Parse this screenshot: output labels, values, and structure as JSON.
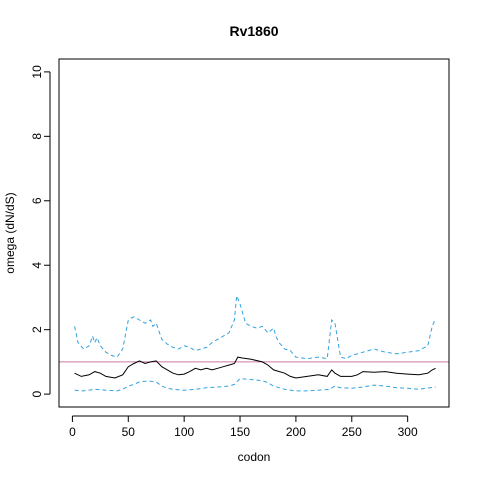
{
  "chart_data": {
    "type": "line",
    "title": "Rv1860",
    "xlabel": "codon",
    "ylabel": "omega (dN/dS)",
    "xlim": [
      -12,
      337
    ],
    "ylim": [
      -0.4,
      10.4
    ],
    "xticks": [
      0,
      50,
      100,
      150,
      200,
      250,
      300
    ],
    "yticks": [
      0,
      2,
      4,
      6,
      8,
      10
    ],
    "reference_line": {
      "y": 1,
      "color": "#cc79a7"
    },
    "series": [
      {
        "role": "estimate",
        "color": "#000000",
        "dashed": false,
        "x": [
          2,
          8,
          15,
          20,
          25,
          30,
          38,
          45,
          50,
          55,
          60,
          65,
          70,
          75,
          80,
          85,
          90,
          95,
          100,
          105,
          110,
          115,
          120,
          125,
          130,
          135,
          140,
          145,
          148,
          152,
          160,
          170,
          175,
          180,
          190,
          195,
          200,
          210,
          220,
          228,
          232,
          235,
          240,
          250,
          255,
          260,
          270,
          280,
          290,
          300,
          310,
          318,
          322,
          325
        ],
        "y": [
          0.65,
          0.55,
          0.6,
          0.7,
          0.65,
          0.55,
          0.5,
          0.6,
          0.85,
          0.95,
          1.03,
          0.95,
          1.0,
          1.03,
          0.85,
          0.75,
          0.65,
          0.6,
          0.62,
          0.7,
          0.8,
          0.75,
          0.8,
          0.75,
          0.8,
          0.85,
          0.9,
          0.95,
          1.15,
          1.12,
          1.08,
          1.0,
          0.9,
          0.75,
          0.65,
          0.55,
          0.5,
          0.55,
          0.6,
          0.55,
          0.75,
          0.65,
          0.55,
          0.55,
          0.6,
          0.7,
          0.68,
          0.7,
          0.65,
          0.62,
          0.6,
          0.65,
          0.75,
          0.8
        ]
      },
      {
        "role": "upper bound",
        "color": "#33a2e0",
        "dashed": true,
        "x": [
          2,
          5,
          10,
          15,
          18,
          20,
          22,
          25,
          30,
          35,
          40,
          45,
          50,
          52,
          55,
          60,
          65,
          70,
          72,
          75,
          80,
          85,
          90,
          95,
          100,
          105,
          110,
          115,
          120,
          125,
          130,
          135,
          140,
          145,
          147,
          150,
          155,
          160,
          165,
          170,
          175,
          180,
          182,
          185,
          190,
          195,
          200,
          210,
          220,
          228,
          232,
          235,
          238,
          240,
          245,
          250,
          260,
          270,
          280,
          290,
          300,
          310,
          318,
          322,
          325
        ],
        "y": [
          2.1,
          1.6,
          1.4,
          1.5,
          1.8,
          1.6,
          1.75,
          1.5,
          1.3,
          1.2,
          1.15,
          1.4,
          2.3,
          2.35,
          2.4,
          2.3,
          2.2,
          2.3,
          2.1,
          2.2,
          1.7,
          1.55,
          1.45,
          1.4,
          1.5,
          1.45,
          1.35,
          1.4,
          1.45,
          1.6,
          1.7,
          1.8,
          1.9,
          2.3,
          3.05,
          2.8,
          2.2,
          2.1,
          2.05,
          2.1,
          1.9,
          2.05,
          1.8,
          1.6,
          1.4,
          1.35,
          1.15,
          1.1,
          1.15,
          1.1,
          2.3,
          2.2,
          1.55,
          1.15,
          1.1,
          1.2,
          1.3,
          1.4,
          1.3,
          1.25,
          1.3,
          1.35,
          1.5,
          2.1,
          2.35
        ]
      },
      {
        "role": "lower bound",
        "color": "#33a2e0",
        "dashed": true,
        "x": [
          2,
          10,
          20,
          30,
          40,
          45,
          50,
          55,
          60,
          65,
          70,
          75,
          80,
          85,
          90,
          100,
          110,
          120,
          130,
          140,
          145,
          150,
          160,
          170,
          175,
          180,
          190,
          200,
          210,
          220,
          230,
          235,
          240,
          250,
          260,
          270,
          280,
          290,
          300,
          310,
          320,
          325
        ],
        "y": [
          0.12,
          0.1,
          0.15,
          0.12,
          0.1,
          0.15,
          0.25,
          0.3,
          0.38,
          0.4,
          0.4,
          0.38,
          0.25,
          0.18,
          0.15,
          0.12,
          0.15,
          0.2,
          0.22,
          0.25,
          0.3,
          0.48,
          0.45,
          0.42,
          0.35,
          0.25,
          0.15,
          0.1,
          0.1,
          0.12,
          0.15,
          0.25,
          0.2,
          0.18,
          0.22,
          0.28,
          0.25,
          0.2,
          0.18,
          0.15,
          0.2,
          0.22
        ]
      }
    ]
  }
}
